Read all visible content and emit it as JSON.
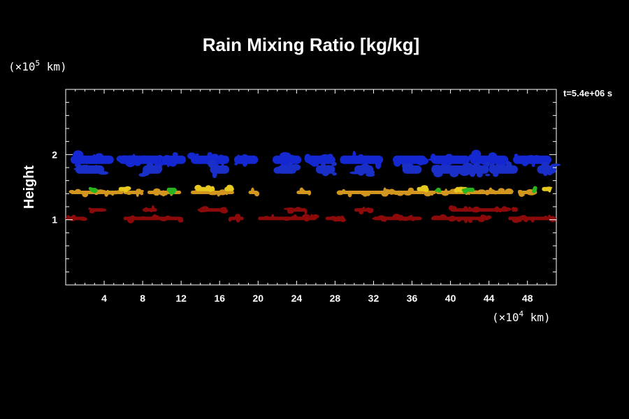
{
  "chart_data": {
    "type": "heatmap",
    "title": "Rain Mixing Ratio [kg/kg]",
    "ylabel": "Height",
    "xunit": {
      "prefix": "(×10",
      "exp": "4",
      "suffix": " km)"
    },
    "yunit": {
      "prefix": "(×10",
      "exp": "5",
      "suffix": " km)"
    },
    "time_label": "t=5.4e+06 s",
    "xlim": [
      0,
      51
    ],
    "ylim": [
      0,
      3
    ],
    "x_ticks": [
      4,
      8,
      12,
      16,
      20,
      24,
      28,
      32,
      36,
      40,
      44,
      48
    ],
    "y_ticks": [
      1,
      2
    ],
    "bands": [
      {
        "color": "#1428d2",
        "y_center": 1.92,
        "segments": [
          [
            0.5,
            5
          ],
          [
            5.5,
            10
          ],
          [
            10,
            12.5
          ],
          [
            13,
            17
          ],
          [
            17.5,
            20
          ],
          [
            21.5,
            24.5
          ],
          [
            25,
            28
          ],
          [
            28.5,
            33
          ],
          [
            34,
            37.5
          ],
          [
            38,
            42
          ],
          [
            42,
            46
          ],
          [
            46.5,
            50.5
          ]
        ]
      },
      {
        "color": "#1a2ec8",
        "y_center": 1.77,
        "segments": [
          [
            1,
            4
          ],
          [
            8,
            10
          ],
          [
            15,
            17
          ],
          [
            22,
            24
          ],
          [
            26,
            28
          ],
          [
            30,
            32
          ],
          [
            35,
            37
          ],
          [
            38,
            44
          ],
          [
            44,
            47
          ],
          [
            49,
            51
          ]
        ]
      },
      {
        "color": "#d2961e",
        "y_center": 1.42,
        "segments": [
          [
            0.5,
            6
          ],
          [
            6,
            8
          ],
          [
            8.5,
            12
          ],
          [
            13,
            17.5
          ],
          [
            19,
            20
          ],
          [
            24,
            25.5
          ],
          [
            28.5,
            34
          ],
          [
            34,
            38.5
          ],
          [
            38.5,
            42
          ],
          [
            42,
            46.5
          ],
          [
            47,
            49
          ]
        ]
      },
      {
        "color": "#e6c81e",
        "y_center": 1.47,
        "segments": [
          [
            5.5,
            6.5
          ],
          [
            13.5,
            15.5
          ],
          [
            16.5,
            17.5
          ],
          [
            36.5,
            37.5
          ],
          [
            40.5,
            41.8
          ],
          [
            49.5,
            50.5
          ]
        ]
      },
      {
        "color": "#28b41e",
        "y_center": 1.46,
        "segments": [
          [
            2.5,
            3
          ],
          [
            10.5,
            11.5
          ],
          [
            38.5,
            39
          ],
          [
            41.5,
            42.5
          ],
          [
            48.5,
            49
          ]
        ]
      },
      {
        "color": "#8c0a0a",
        "y_center": 1.15,
        "segments": [
          [
            2.5,
            4
          ],
          [
            8,
            9.5
          ],
          [
            14,
            16.5
          ],
          [
            23,
            25
          ],
          [
            30,
            32
          ],
          [
            40,
            46
          ],
          [
            46.5,
            47
          ]
        ]
      },
      {
        "color": "#8c0a0a",
        "y_center": 1.02,
        "segments": [
          [
            0,
            2
          ],
          [
            6,
            12
          ],
          [
            17,
            18.5
          ],
          [
            20,
            26
          ],
          [
            27,
            29
          ],
          [
            32,
            37
          ],
          [
            38,
            44
          ],
          [
            46,
            51
          ]
        ]
      }
    ]
  }
}
